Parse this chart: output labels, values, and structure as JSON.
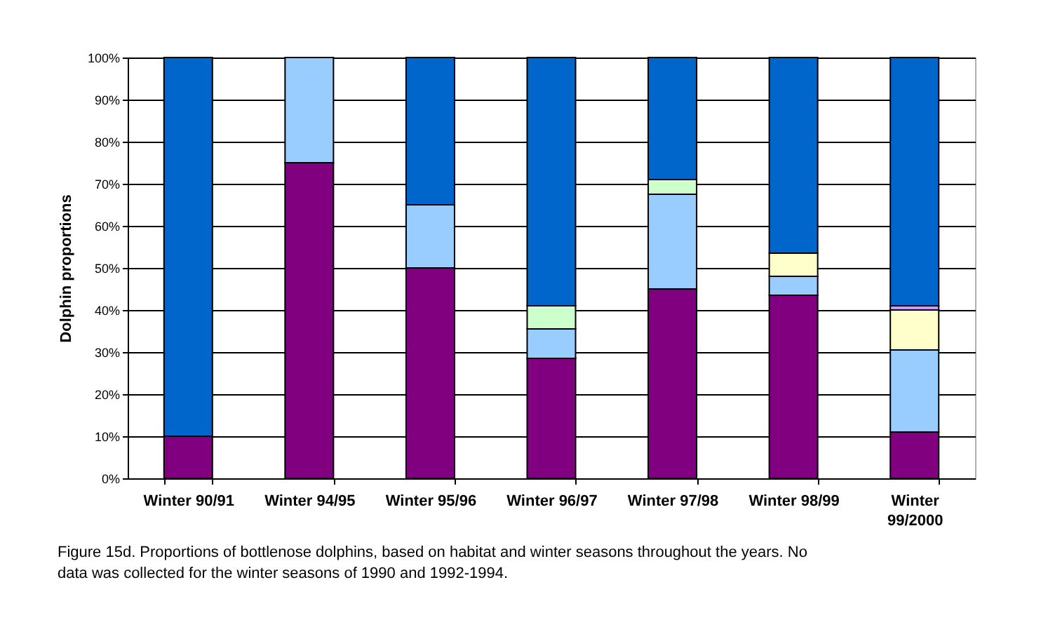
{
  "chart_data": {
    "type": "bar",
    "stacked": true,
    "ylabel": "Dolphin proportions",
    "categories": [
      "Winter 90/91",
      "Winter 94/95",
      "Winter 95/96",
      "Winter 96/97",
      "Winter 97/98",
      "Winter 98/99",
      "Winter 99/2000"
    ],
    "series": [
      {
        "color": "#800080",
        "values": [
          10,
          75,
          50,
          28.5,
          45,
          43.5,
          11
        ]
      },
      {
        "color": "#99ccff",
        "values": [
          null,
          25,
          15,
          7,
          22.5,
          4.5,
          19.5
        ]
      },
      {
        "color": "#ffffcc",
        "values": [
          null,
          null,
          null,
          null,
          null,
          5.5,
          9.5
        ]
      },
      {
        "color": "#ccffcc",
        "values": [
          null,
          null,
          null,
          5.5,
          3.5,
          null,
          null
        ]
      },
      {
        "color": "#cc99ff",
        "values": [
          null,
          null,
          null,
          null,
          null,
          null,
          1
        ]
      },
      {
        "color": "#0066cc",
        "values": [
          90,
          null,
          35,
          59,
          29,
          46.5,
          59
        ]
      }
    ],
    "ylim": [
      0,
      100
    ],
    "yticks": [
      {
        "value": 0,
        "label": "0%"
      },
      {
        "value": 10,
        "label": "10%"
      },
      {
        "value": 20,
        "label": "20%"
      },
      {
        "value": 30,
        "label": "30%"
      },
      {
        "value": 40,
        "label": "40%"
      },
      {
        "value": 50,
        "label": "50%"
      },
      {
        "value": 60,
        "label": "60%"
      },
      {
        "value": 70,
        "label": "70%"
      },
      {
        "value": 80,
        "label": "80%"
      },
      {
        "value": 90,
        "label": "90%"
      },
      {
        "value": 100,
        "label": "100%"
      }
    ],
    "grid": "y",
    "annotations": [
      "Figure 15d. Proportions of bottlenose dolphins, based on habitat and winter seasons throughout the years.  No data was collected for the winter seasons of 1990 and 1992-1994."
    ]
  }
}
